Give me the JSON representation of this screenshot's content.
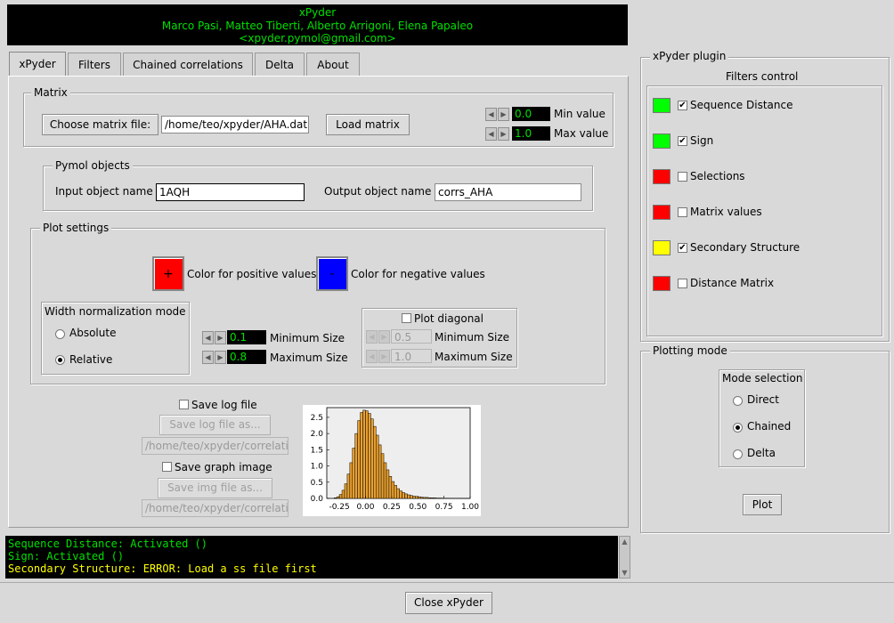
{
  "header": {
    "title": "xPyder",
    "authors": "Marco Pasi, Matteo Tiberti, Alberto Arrigoni, Elena Papaleo",
    "email": "<xpyder.pymol@gmail.com>"
  },
  "tabs": [
    {
      "label": "xPyder",
      "active": true
    },
    {
      "label": "Filters"
    },
    {
      "label": "Chained correlations"
    },
    {
      "label": "Delta"
    },
    {
      "label": "About"
    }
  ],
  "matrix": {
    "group_label": "Matrix",
    "choose_label": "Choose matrix file:",
    "file_path": "/home/teo/xpyder/AHA.dat",
    "load_label": "Load matrix",
    "min_value": "0.0",
    "min_label": "Min value",
    "max_value": "1.0",
    "max_label": "Max value"
  },
  "pymol": {
    "group_label": "Pymol objects",
    "input_label": "Input object name",
    "input_value": "1AQH",
    "output_label": "Output object name",
    "output_value": "corrs_AHA"
  },
  "plot": {
    "group_label": "Plot settings",
    "pos_symbol": "+",
    "pos_label": "Color for positive values",
    "neg_symbol": "-",
    "neg_label": "Color for negative values",
    "pos_color": "#ff0000",
    "neg_color": "#0000ff",
    "width_mode_label": "Width normalization mode",
    "absolute_label": "Absolute",
    "relative_label": "Relative",
    "min_size_value": "0.1",
    "min_size_label": "Minimum Size",
    "max_size_value": "0.8",
    "max_size_label": "Maximum Size",
    "diagonal_label": "Plot diagonal",
    "diag_min_value": "0.5",
    "diag_min_label": "Minimum Size",
    "diag_max_value": "1.0",
    "diag_max_label": "Maximum Size"
  },
  "save": {
    "log_check_label": "Save log file",
    "log_btn": "Save log file as...",
    "log_path": "/home/teo/xpyder/correlati",
    "graph_check_label": "Save graph image",
    "img_btn": "Save img file as...",
    "img_path": "/home/teo/xpyder/correlati"
  },
  "chart_data": {
    "type": "bar",
    "xlim": [
      -0.37,
      1.0
    ],
    "ylim": [
      0,
      2.8
    ],
    "xticks": [
      "-0.25",
      "0.00",
      "0.25",
      "0.50",
      "0.75",
      "1.00"
    ],
    "yticks": [
      "0.0",
      "0.5",
      "1.0",
      "1.5",
      "2.0",
      "2.5"
    ],
    "bar_color": "#e8a030",
    "bin_width": 0.025,
    "bin_start": -0.3,
    "values": [
      0.02,
      0.05,
      0.12,
      0.25,
      0.45,
      0.75,
      1.1,
      1.55,
      2.0,
      2.4,
      2.65,
      2.72,
      2.7,
      2.62,
      2.45,
      2.22,
      1.95,
      1.65,
      1.38,
      1.1,
      0.88,
      0.68,
      0.52,
      0.4,
      0.3,
      0.23,
      0.18,
      0.14,
      0.11,
      0.09,
      0.07,
      0.06,
      0.05,
      0.04,
      0.03,
      0.03,
      0.02,
      0.02,
      0.015,
      0.01,
      0.01,
      0.008,
      0.006,
      0.005,
      0.004,
      0.003,
      0.002,
      0.002,
      0.001,
      0.001,
      0.001,
      0.001
    ]
  },
  "plugin": {
    "group_label": "xPyder plugin",
    "filters_title": "Filters control",
    "filters": [
      {
        "label": "Sequence Distance",
        "color": "#00ff00",
        "checked": true
      },
      {
        "label": "Sign",
        "color": "#00ff00",
        "checked": true
      },
      {
        "label": "Selections",
        "color": "#ff0000",
        "checked": false
      },
      {
        "label": "Matrix values",
        "color": "#ff0000",
        "checked": false
      },
      {
        "label": "Secondary Structure",
        "color": "#ffff00",
        "checked": true
      },
      {
        "label": "Distance Matrix",
        "color": "#ff0000",
        "checked": false
      }
    ],
    "checkmark": "✔"
  },
  "plotting": {
    "group_label": "Plotting mode",
    "mode_title": "Mode selection",
    "direct_label": "Direct",
    "chained_label": "Chained",
    "delta_label": "Delta",
    "plot_btn": "Plot"
  },
  "log": {
    "lines": [
      {
        "text": "Sequence Distance: Activated ()",
        "color": "#00e000"
      },
      {
        "text": "Sign: Activated ()",
        "color": "#00e000"
      },
      {
        "text": "Secondary Structure: ERROR: Load a ss file first",
        "color": "#ffff00"
      }
    ]
  },
  "footer": {
    "close_label": "Close xPyder"
  }
}
